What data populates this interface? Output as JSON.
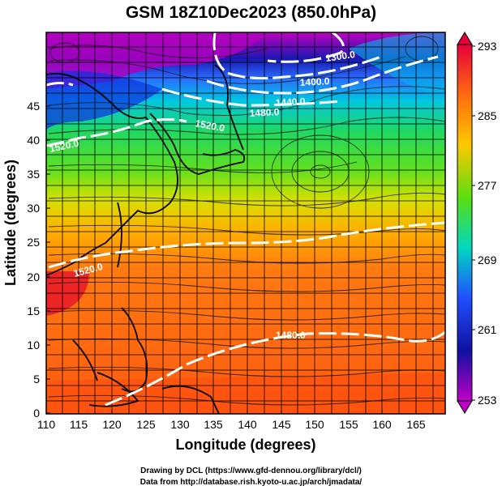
{
  "title": "GSM 18Z10Dec2023 (850.0hPa)",
  "x_axis": {
    "label": "Longitude (degrees)",
    "ticks": [
      "110",
      "115",
      "120",
      "125",
      "130",
      "135",
      "140",
      "145",
      "150",
      "155",
      "160",
      "165"
    ]
  },
  "y_axis": {
    "label": "Latitude  (degrees)",
    "ticks": [
      "0",
      "5",
      "10",
      "15",
      "20",
      "25",
      "30",
      "35",
      "40",
      "45"
    ]
  },
  "colorbar": {
    "labels": [
      "293",
      "285",
      "277",
      "269",
      "261",
      "253"
    ],
    "colors": [
      "#e8003a",
      "#ff6a10",
      "#ffc800",
      "#5adf10",
      "#00d8c0",
      "#2050ff",
      "#1010a0",
      "#c000c8"
    ]
  },
  "contour_labels": {
    "c1300": "1300.0",
    "c1400": "1400.0",
    "c1440": "1440.0",
    "c1480": "1480.0",
    "c1520a": "1520.0",
    "c1520b": "1520.0",
    "c1520c": "1520.0",
    "c1480s": "1480.0"
  },
  "credit_line1": "Drawing by DCL (https://www.gfd-dennou.org/library/dcl/)",
  "credit_line2": "Data from http://database.rish.kyoto-u.ac.jp/arch/jmadata/"
}
